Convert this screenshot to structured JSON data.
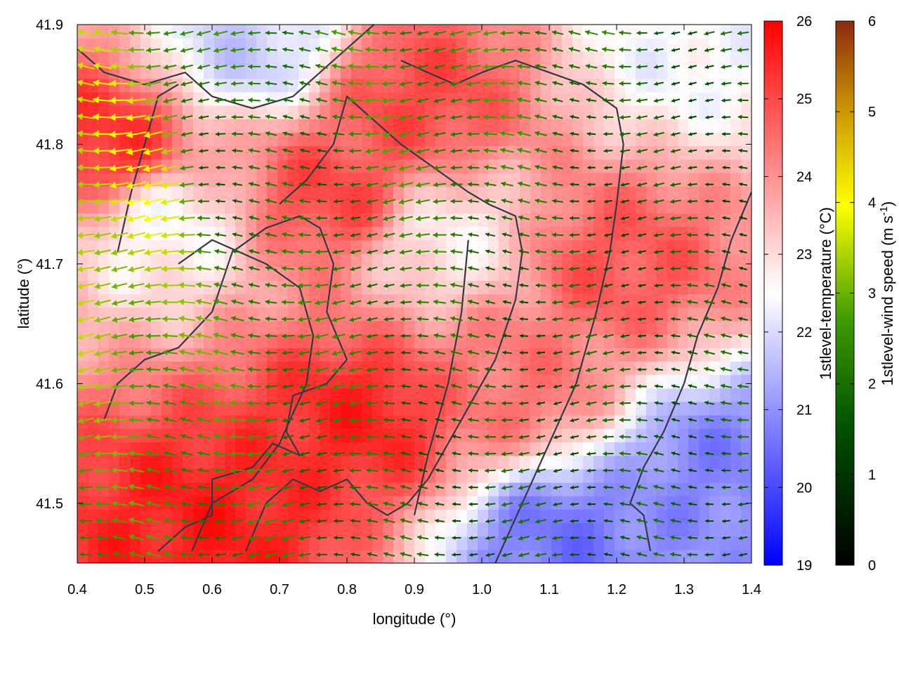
{
  "chart_data": {
    "type": "heatmap",
    "subtype": "scalar field with wind vector overlay",
    "xlabel": "longitude (°)",
    "ylabel": "latitude (°)",
    "xlim": [
      0.4,
      1.4
    ],
    "ylim": [
      41.45,
      41.9
    ],
    "x_ticks": [
      "0.4",
      "0.5",
      "0.6",
      "0.7",
      "0.8",
      "0.9",
      "1.0",
      "1.1",
      "1.2",
      "1.3",
      "1.4"
    ],
    "y_ticks": [
      "41.5",
      "41.6",
      "41.7",
      "41.8",
      "41.9"
    ],
    "temperature_colorbar": {
      "label": "1stlevel-temperature (°C)",
      "range": [
        19,
        26
      ],
      "ticks": [
        "19",
        "20",
        "21",
        "22",
        "23",
        "24",
        "25",
        "26"
      ],
      "colors": [
        "#0000ff",
        "#ffffff",
        "#ff0000"
      ]
    },
    "wind_colorbar": {
      "label": "1stlevel-wind speed (m s-1)",
      "label_prefix": "1stlevel-wind speed (m s",
      "label_sup": "-1",
      "label_suffix": ")",
      "range": [
        0,
        6
      ],
      "ticks": [
        "0",
        "1",
        "2",
        "3",
        "4",
        "5",
        "6"
      ],
      "colors": [
        "#000000",
        "#005000",
        "#3c9a00",
        "#ffff00",
        "#d2a000",
        "#8c2a10"
      ]
    },
    "temperature_features": [
      {
        "lon": 0.82,
        "lat": 41.57,
        "temp": 25.5
      },
      {
        "lon": 0.78,
        "lat": 41.76,
        "temp": 25.0
      },
      {
        "lon": 0.6,
        "lat": 41.48,
        "temp": 25.6
      },
      {
        "lon": 0.44,
        "lat": 41.8,
        "temp": 25.3
      },
      {
        "lon": 0.9,
        "lat": 41.84,
        "temp": 25.0
      },
      {
        "lon": 1.2,
        "lat": 41.7,
        "temp": 24.8
      },
      {
        "lon": 1.05,
        "lat": 41.6,
        "temp": 24.4
      },
      {
        "lon": 1.35,
        "lat": 41.53,
        "temp": 20.8
      },
      {
        "lon": 1.12,
        "lat": 41.47,
        "temp": 20.6
      },
      {
        "lon": 0.66,
        "lat": 41.88,
        "temp": 21.8
      },
      {
        "lon": 0.53,
        "lat": 41.73,
        "temp": 22.6
      },
      {
        "lon": 1.3,
        "lat": 41.88,
        "temp": 22.4
      },
      {
        "lon": 0.95,
        "lat": 41.72,
        "temp": 22.8
      }
    ],
    "wind_features": [
      {
        "lon": 0.47,
        "lat": 41.78,
        "speed": 4.3
      },
      {
        "lon": 0.88,
        "lat": 41.84,
        "speed": 3.1
      },
      {
        "lon": 1.25,
        "lat": 41.56,
        "speed": 2.3
      },
      {
        "lon": 1.3,
        "lat": 41.75,
        "speed": 2.2
      },
      {
        "lon": 0.65,
        "lat": 41.79,
        "speed": 2.4
      }
    ],
    "wind_direction": "mostly westward (easterly flow)",
    "boundaries": [
      [
        [
          0.44,
          41.57
        ],
        [
          0.46,
          41.6
        ],
        [
          0.5,
          41.62
        ],
        [
          0.55,
          41.63
        ],
        [
          0.6,
          41.66
        ],
        [
          0.63,
          41.71
        ],
        [
          0.68,
          41.73
        ],
        [
          0.73,
          41.74
        ],
        [
          0.76,
          41.73
        ],
        [
          0.78,
          41.7
        ],
        [
          0.77,
          41.66
        ],
        [
          0.8,
          41.62
        ],
        [
          0.77,
          41.6
        ],
        [
          0.72,
          41.59
        ],
        [
          0.71,
          41.56
        ],
        [
          0.73,
          41.54
        ],
        [
          0.69,
          41.55
        ],
        [
          0.66,
          41.53
        ],
        [
          0.6,
          41.52
        ],
        [
          0.6,
          41.49
        ],
        [
          0.56,
          41.48
        ],
        [
          0.52,
          41.46
        ]
      ],
      [
        [
          0.65,
          41.46
        ],
        [
          0.68,
          41.5
        ],
        [
          0.72,
          41.52
        ],
        [
          0.76,
          41.51
        ],
        [
          0.8,
          41.52
        ],
        [
          0.83,
          41.5
        ],
        [
          0.86,
          41.49
        ],
        [
          0.89,
          41.5
        ],
        [
          0.92,
          41.52
        ],
        [
          0.95,
          41.55
        ],
        [
          0.98,
          41.58
        ],
        [
          1.02,
          41.62
        ],
        [
          1.05,
          41.67
        ],
        [
          1.06,
          41.71
        ],
        [
          1.05,
          41.74
        ],
        [
          1.01,
          41.75
        ],
        [
          0.98,
          41.76
        ],
        [
          0.93,
          41.78
        ],
        [
          0.88,
          41.8
        ],
        [
          0.84,
          41.82
        ],
        [
          0.8,
          41.84
        ],
        [
          0.78,
          41.8
        ],
        [
          0.74,
          41.77
        ],
        [
          0.7,
          41.75
        ]
      ],
      [
        [
          1.02,
          41.45
        ],
        [
          1.06,
          41.5
        ],
        [
          1.1,
          41.55
        ],
        [
          1.14,
          41.6
        ],
        [
          1.17,
          41.66
        ],
        [
          1.19,
          41.71
        ],
        [
          1.2,
          41.75
        ],
        [
          1.21,
          41.8
        ],
        [
          1.2,
          41.83
        ],
        [
          1.15,
          41.85
        ],
        [
          1.1,
          41.86
        ],
        [
          1.05,
          41.87
        ],
        [
          1.0,
          41.86
        ],
        [
          0.96,
          41.85
        ],
        [
          0.92,
          41.86
        ],
        [
          0.88,
          41.87
        ]
      ],
      [
        [
          1.25,
          41.46
        ],
        [
          1.24,
          41.49
        ],
        [
          1.22,
          41.5
        ],
        [
          1.24,
          41.53
        ],
        [
          1.27,
          41.56
        ],
        [
          1.3,
          41.6
        ],
        [
          1.32,
          41.64
        ],
        [
          1.35,
          41.68
        ],
        [
          1.37,
          41.72
        ],
        [
          1.4,
          41.76
        ]
      ],
      [
        [
          0.4,
          41.88
        ],
        [
          0.44,
          41.86
        ],
        [
          0.5,
          41.85
        ],
        [
          0.56,
          41.86
        ],
        [
          0.6,
          41.84
        ],
        [
          0.66,
          41.83
        ],
        [
          0.72,
          41.84
        ],
        [
          0.76,
          41.86
        ],
        [
          0.8,
          41.88
        ],
        [
          0.84,
          41.9
        ]
      ],
      [
        [
          0.57,
          41.46
        ],
        [
          0.6,
          41.5
        ],
        [
          0.66,
          41.52
        ],
        [
          0.7,
          41.55
        ],
        [
          0.74,
          41.6
        ],
        [
          0.75,
          41.64
        ],
        [
          0.73,
          41.68
        ],
        [
          0.68,
          41.7
        ],
        [
          0.6,
          41.72
        ],
        [
          0.55,
          41.7
        ]
      ],
      [
        [
          0.46,
          41.71
        ],
        [
          0.48,
          41.76
        ],
        [
          0.5,
          41.8
        ],
        [
          0.52,
          41.84
        ],
        [
          0.55,
          41.85
        ]
      ],
      [
        [
          0.9,
          41.49
        ],
        [
          0.92,
          41.54
        ],
        [
          0.95,
          41.6
        ],
        [
          0.97,
          41.66
        ],
        [
          0.98,
          41.72
        ]
      ]
    ]
  }
}
